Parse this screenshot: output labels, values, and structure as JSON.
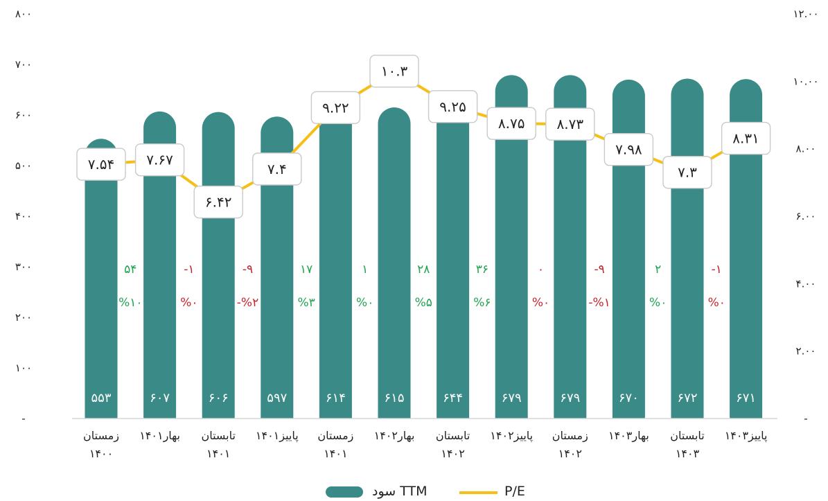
{
  "chart_data": {
    "type": "bar+line",
    "categories": [
      [
        "زمستان",
        "۱۴۰۰"
      ],
      [
        "بهار۱۴۰۱"
      ],
      [
        "تابستان",
        "۱۴۰۱"
      ],
      [
        "پاییز۱۴۰۱"
      ],
      [
        "زمستان",
        "۱۴۰۱"
      ],
      [
        "بهار۱۴۰۲"
      ],
      [
        "تابستان",
        "۱۴۰۲"
      ],
      [
        "پاییز۱۴۰۲"
      ],
      [
        "زمستان",
        "۱۴۰۲"
      ],
      [
        "بهار۱۴۰۳"
      ],
      [
        "تابستان",
        "۱۴۰۳"
      ],
      [
        "پاییز۱۴۰۳"
      ]
    ],
    "bar_series": {
      "name": "سود TTM",
      "color": "#3a8a87",
      "values": [
        553,
        607,
        606,
        597,
        614,
        615,
        644,
        679,
        679,
        670,
        672,
        671
      ],
      "labels": [
        "۵۵۳",
        "۶۰۷",
        "۶۰۶",
        "۵۹۷",
        "۶۱۴",
        "۶۱۵",
        "۶۴۴",
        "۶۷۹",
        "۶۷۹",
        "۶۷۰",
        "۶۷۲",
        "۶۷۱"
      ]
    },
    "line_series": {
      "name": "P/E",
      "color": "#f5bf16",
      "values": [
        7.54,
        7.67,
        6.42,
        7.4,
        9.22,
        10.3,
        9.25,
        8.75,
        8.73,
        7.98,
        7.3,
        8.31
      ],
      "labels": [
        "۷.۵۴",
        "۷.۶۷",
        "۶.۴۲",
        "۷.۴",
        "۹.۲۲",
        "۱۰.۳",
        "۹.۲۵",
        "۸.۷۵",
        "۸.۷۳",
        "۷.۹۸",
        "۷.۳",
        "۸.۳۱"
      ]
    },
    "changes": [
      {
        "abs": "۵۴",
        "pct": "%۱۰",
        "color": "#21a352"
      },
      {
        "abs": "-۱",
        "pct": "%۰",
        "color": "#c8232b"
      },
      {
        "abs": "-۹",
        "pct": "-%۲",
        "color": "#c8232b"
      },
      {
        "abs": "۱۷",
        "pct": "%۳",
        "color": "#21a352"
      },
      {
        "abs": "۱",
        "pct": "%۰",
        "color": "#21a352"
      },
      {
        "abs": "۲۸",
        "pct": "%۵",
        "color": "#21a352"
      },
      {
        "abs": "۳۶",
        "pct": "%۶",
        "color": "#21a352"
      },
      {
        "abs": "۰",
        "pct": "%۰",
        "color": "#c8232b"
      },
      {
        "abs": "-۹",
        "pct": "-%۱",
        "color": "#c8232b"
      },
      {
        "abs": "۲",
        "pct": "%۰",
        "color": "#21a352"
      },
      {
        "abs": "-۱",
        "pct": "%۰",
        "color": "#c8232b"
      }
    ],
    "y_left": {
      "range": [
        0,
        800
      ],
      "ticks": [
        0,
        100,
        200,
        300,
        400,
        500,
        600,
        700,
        800
      ],
      "labels": [
        "-",
        "۱۰۰",
        "۲۰۰",
        "۳۰۰",
        "۴۰۰",
        "۵۰۰",
        "۶۰۰",
        "۷۰۰",
        "۸۰۰"
      ]
    },
    "y_right": {
      "range": [
        0,
        12
      ],
      "ticks": [
        0,
        2,
        4,
        6,
        8,
        10,
        12
      ],
      "labels": [
        "-",
        "۲.۰۰",
        "۴.۰۰",
        "۶.۰۰",
        "۸.۰۰",
        "۱۰.۰۰",
        "۱۲.۰۰"
      ]
    },
    "legend": {
      "position": "bottom",
      "items": [
        {
          "label": "سود TTM",
          "kind": "bar",
          "color": "#3a8a87"
        },
        {
          "label": "P/E",
          "kind": "line",
          "color": "#f5bf16"
        }
      ]
    },
    "grid": false
  }
}
